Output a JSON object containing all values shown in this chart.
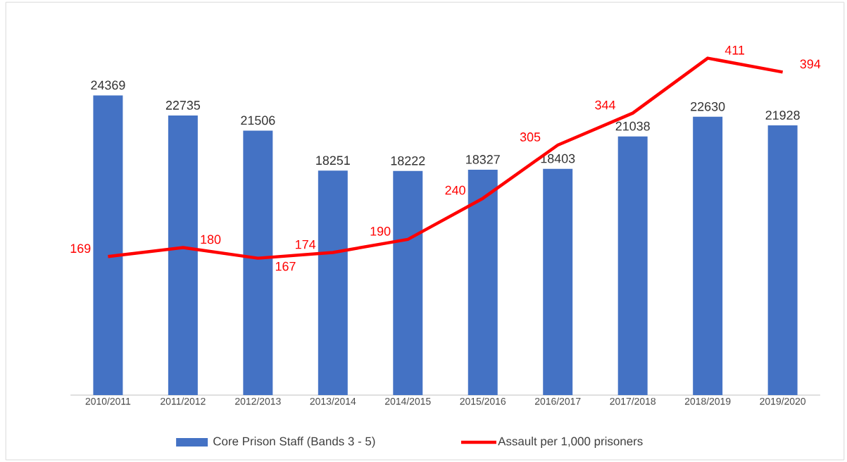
{
  "chart_data": {
    "type": "bar",
    "categories": [
      "2010/2011",
      "2011/2012",
      "2012/2013",
      "2013/2014",
      "2014/2015",
      "2015/2016",
      "2016/2017",
      "2017/2018",
      "2018/2019",
      "2019/2020"
    ],
    "series": [
      {
        "name": "Core Prison Staff (Bands 3 - 5)",
        "color": "#4472c4",
        "values": [
          24369,
          22735,
          21506,
          18251,
          18222,
          18327,
          18403,
          21038,
          22630,
          21928
        ]
      },
      {
        "name": "Assault per 1,000 prisoners",
        "type": "line",
        "axis": "y2",
        "color": "#ff0000",
        "values": [
          169,
          180,
          167,
          174,
          190,
          240,
          305,
          344,
          411,
          394
        ]
      }
    ],
    "tick_labels": "x",
    "data_labels": true,
    "legend": "bottom",
    "marker": "none",
    "line_style": "solid"
  }
}
